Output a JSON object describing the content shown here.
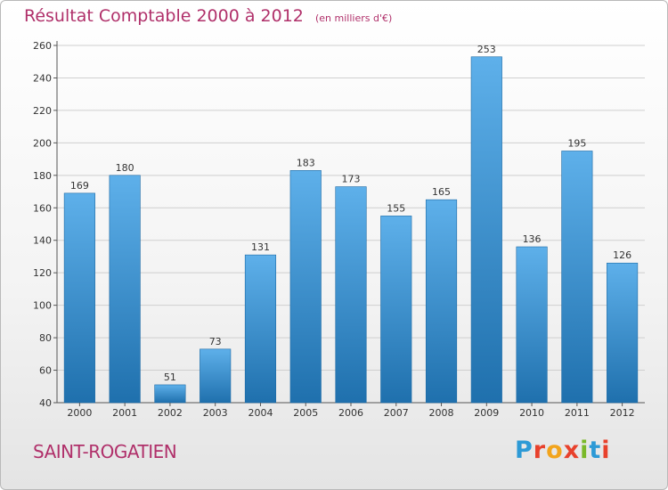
{
  "title": "Résultat Comptable 2000 à 2012",
  "subtitle": "(en milliers d'€)",
  "commune": "SAINT-ROGATIEN",
  "logo": {
    "text": "Proxiti",
    "colors": [
      "#2d9ad6",
      "#e8412c",
      "#f2a41c",
      "#e8412c",
      "#7ab929",
      "#2d9ad6",
      "#e8412c"
    ]
  },
  "colors": {
    "bar_light": "#5eb0ea",
    "bar_dark": "#1f70ad",
    "title": "#b0306a",
    "grid": "#cfcfcf"
  },
  "chart_data": {
    "type": "bar",
    "categories": [
      "2000",
      "2001",
      "2002",
      "2003",
      "2004",
      "2005",
      "2006",
      "2007",
      "2008",
      "2009",
      "2010",
      "2011",
      "2012"
    ],
    "values": [
      169,
      180,
      51,
      73,
      131,
      183,
      173,
      155,
      165,
      253,
      136,
      195,
      126
    ],
    "ylim": [
      40,
      260
    ],
    "yticks": [
      40,
      60,
      80,
      100,
      120,
      140,
      160,
      180,
      200,
      220,
      240,
      260
    ],
    "grid": true,
    "title": "Résultat Comptable 2000 à 2012",
    "subtitle": "(en milliers d'€)"
  }
}
